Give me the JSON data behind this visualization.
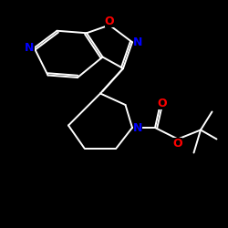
{
  "background_color": "#000000",
  "bond_color": "#ffffff",
  "atom_colors": {
    "N": "#0000ff",
    "O": "#ff0000"
  },
  "figsize": [
    2.5,
    2.5
  ],
  "dpi": 100,
  "xlim": [
    0,
    10
  ],
  "ylim": [
    0,
    10
  ]
}
